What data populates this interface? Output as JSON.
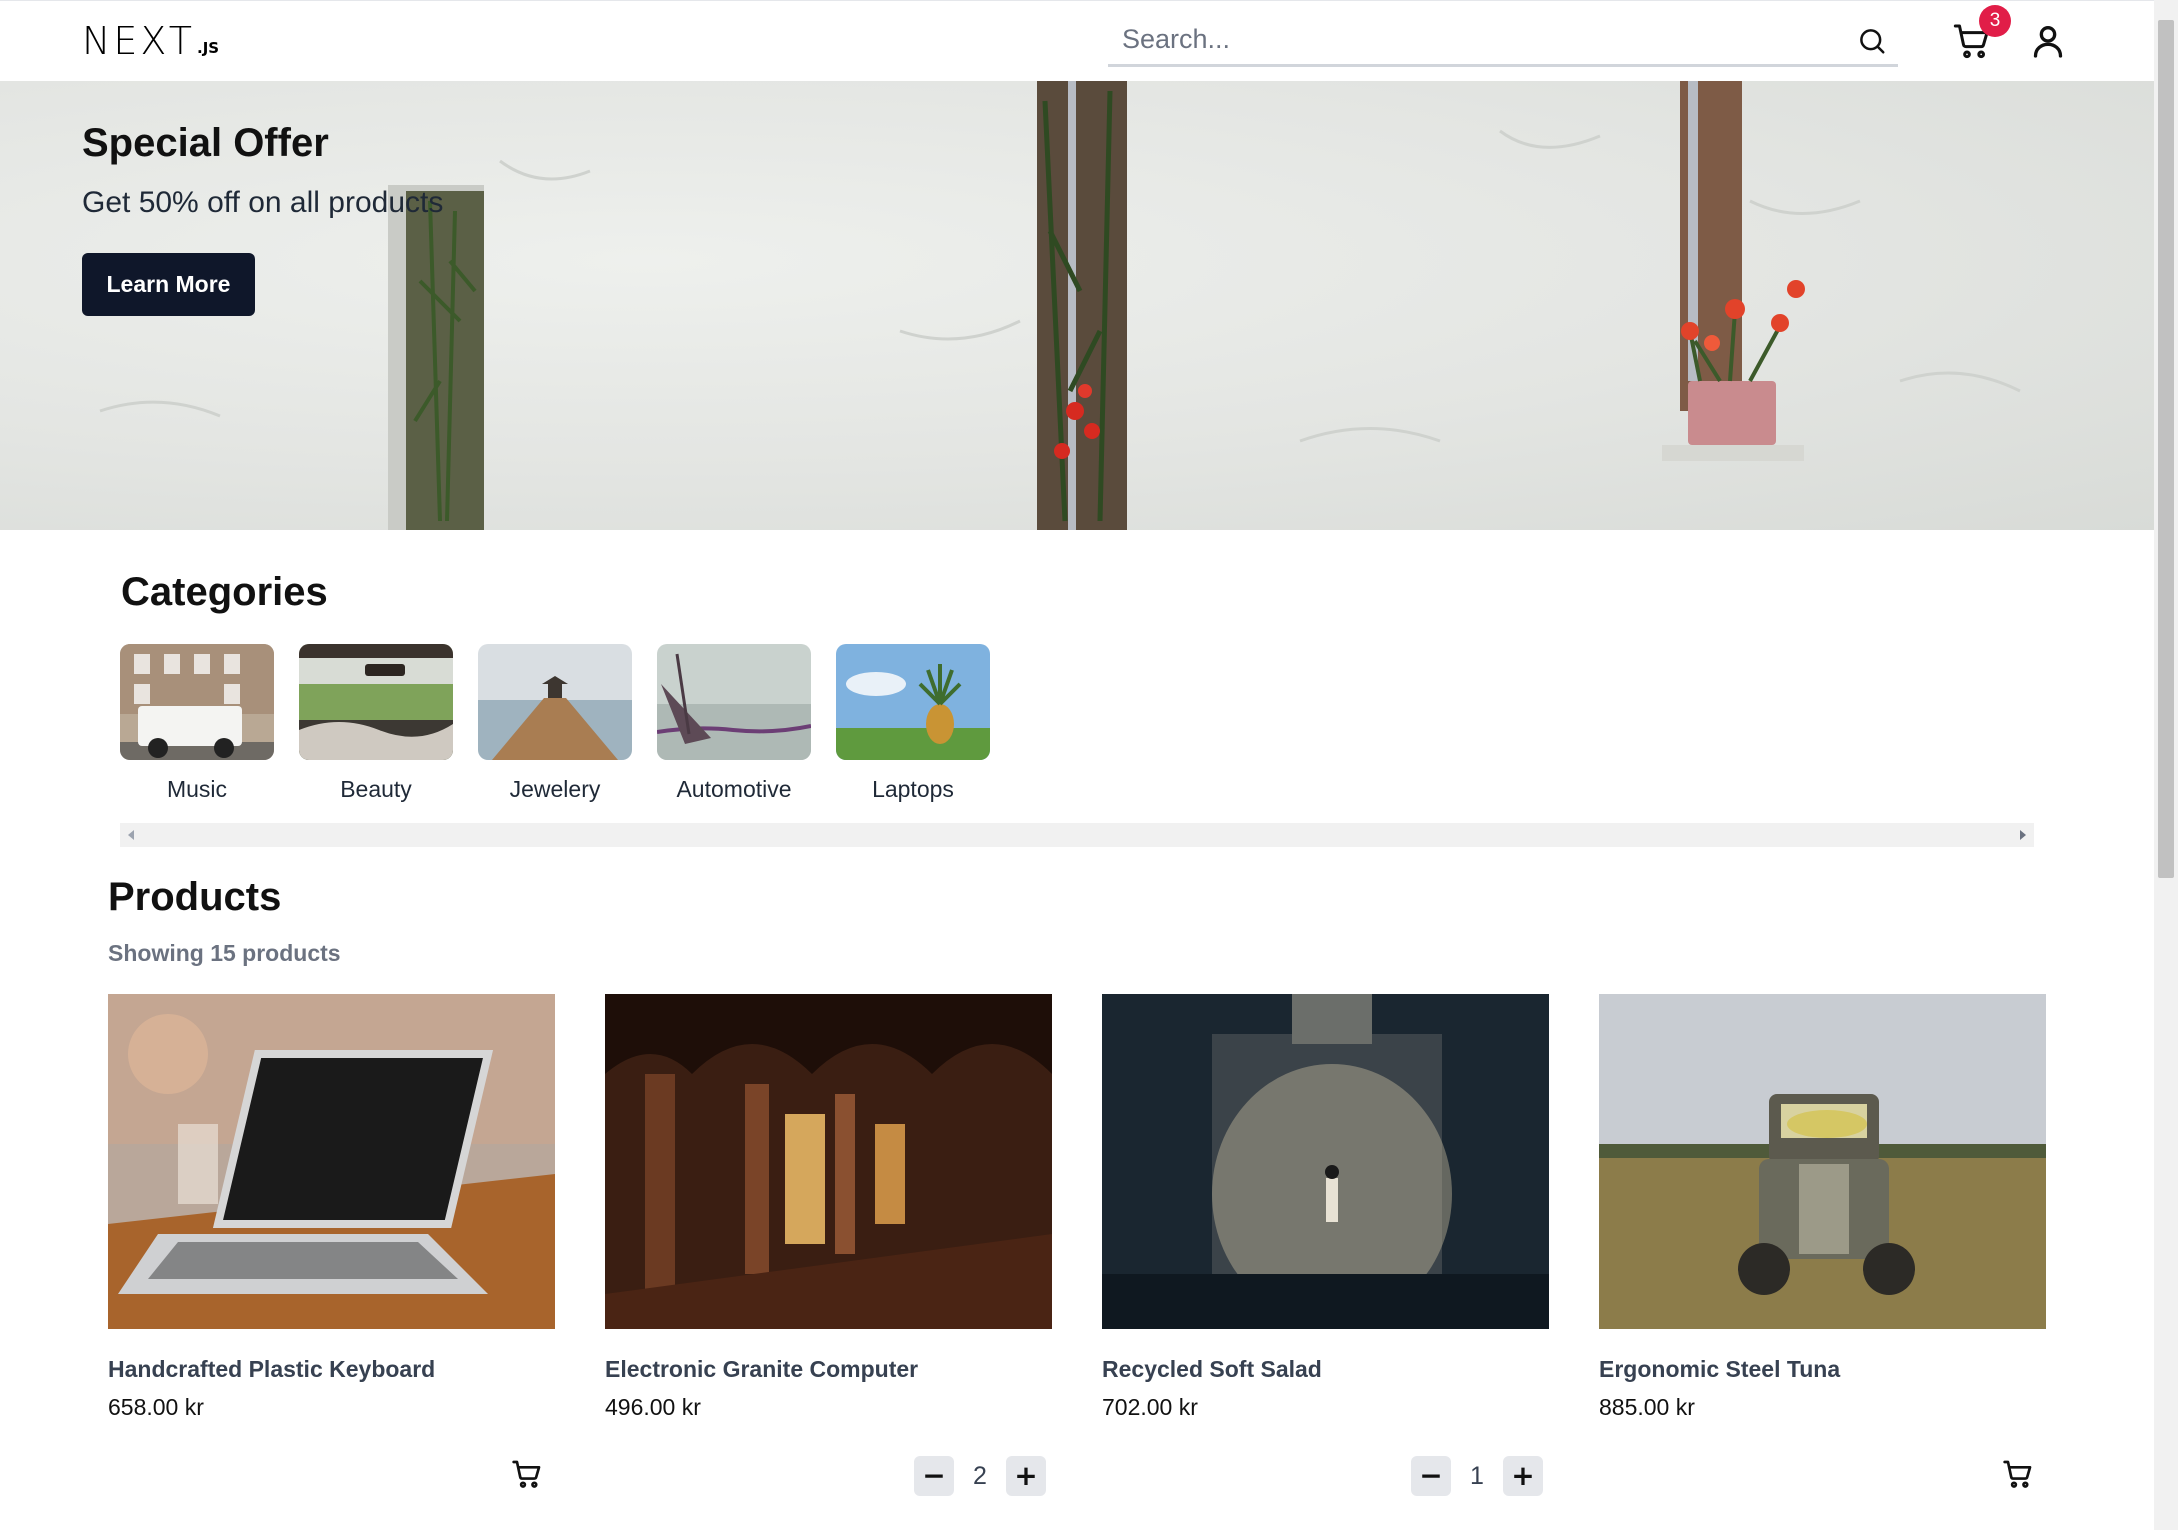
{
  "header": {
    "logo_main": "NEXT",
    "logo_sub": ".JS",
    "search_placeholder": "Search...",
    "search_icon": "search-icon",
    "cart_icon": "cart-icon",
    "cart_count": "3",
    "user_icon": "user-icon",
    "badge_color": "#e11d48"
  },
  "hero": {
    "title": "Special Offer",
    "subtitle": "Get 50% off on all products",
    "button_label": "Learn More",
    "button_color": "#0f172a"
  },
  "categories": {
    "title": "Categories",
    "items": [
      {
        "label": "Music"
      },
      {
        "label": "Beauty"
      },
      {
        "label": "Jewelery"
      },
      {
        "label": "Automotive"
      },
      {
        "label": "Laptops"
      }
    ]
  },
  "products": {
    "title": "Products",
    "count_text": "Showing 15 products",
    "items": [
      {
        "name": "Handcrafted Plastic Keyboard",
        "price": "658.00 kr",
        "quantity": null
      },
      {
        "name": "Electronic Granite Computer",
        "price": "496.00 kr",
        "quantity": "2"
      },
      {
        "name": "Recycled Soft Salad",
        "price": "702.00 kr",
        "quantity": "1"
      },
      {
        "name": "Ergonomic Steel Tuna",
        "price": "885.00 kr",
        "quantity": null
      }
    ]
  }
}
